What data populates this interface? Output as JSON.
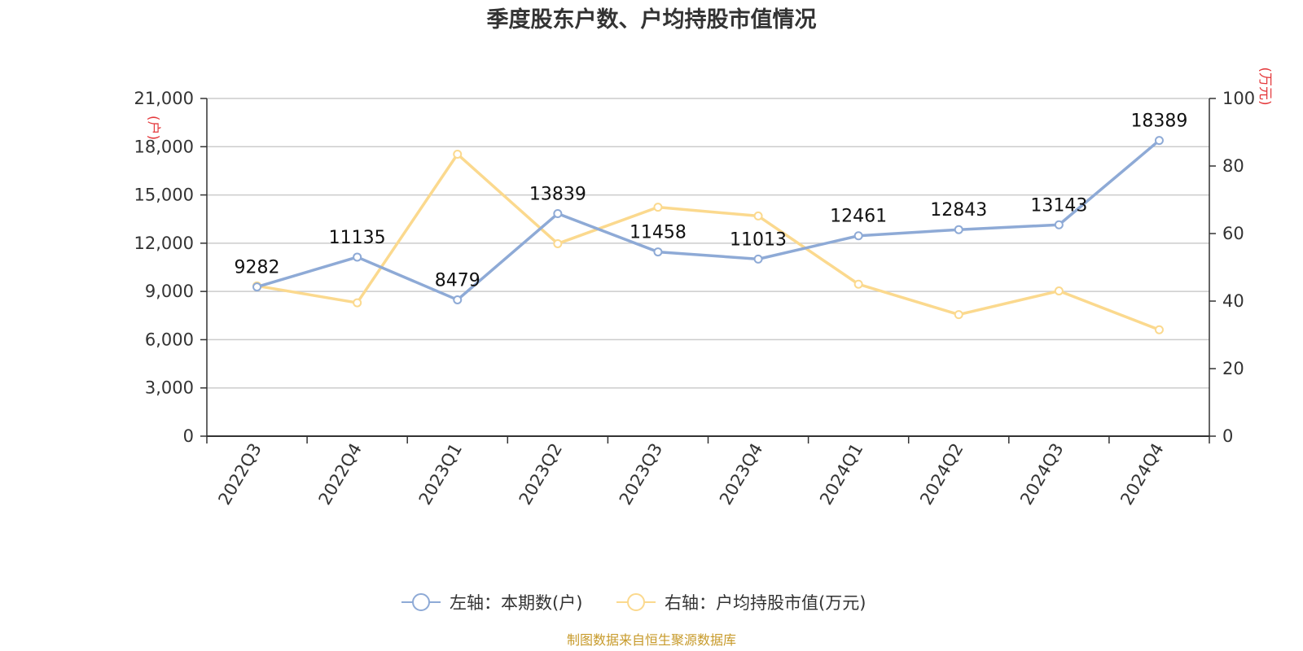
{
  "chart_data": {
    "type": "line",
    "title": "季度股东户数、户均持股市值情况",
    "categories": [
      "2022Q3",
      "2022Q4",
      "2023Q1",
      "2023Q2",
      "2023Q3",
      "2023Q4",
      "2024Q1",
      "2024Q2",
      "2024Q3",
      "2024Q4"
    ],
    "left_axis": {
      "unit": "(户)",
      "ylim": [
        0,
        21000
      ],
      "ticks": [
        "0",
        "3,000",
        "6,000",
        "9,000",
        "12,000",
        "15,000",
        "18,000",
        "21,000"
      ]
    },
    "right_axis": {
      "unit": "(万元)",
      "ylim": [
        0,
        100
      ],
      "ticks": [
        "0",
        "20",
        "40",
        "60",
        "80",
        "100"
      ]
    },
    "series": [
      {
        "name": "左轴：本期数(户)",
        "axis": "left",
        "color": "#8eaad6",
        "values": [
          9282,
          11135,
          8479,
          13839,
          11458,
          11013,
          12461,
          12843,
          13143,
          18389
        ],
        "labels": [
          "9282",
          "11135",
          "8479",
          "13839",
          "11458",
          "11013",
          "12461",
          "12843",
          "13143",
          "18389"
        ]
      },
      {
        "name": "右轴：户均持股市值(万元)",
        "axis": "right",
        "color": "#fbd98e",
        "values": [
          44.5,
          39.5,
          83.5,
          57.0,
          67.8,
          65.2,
          45.0,
          36.0,
          43.0,
          31.5
        ]
      }
    ],
    "grid": true,
    "legend_position": "bottom-center"
  },
  "source_note": "制图数据来自恒生聚源数据库"
}
